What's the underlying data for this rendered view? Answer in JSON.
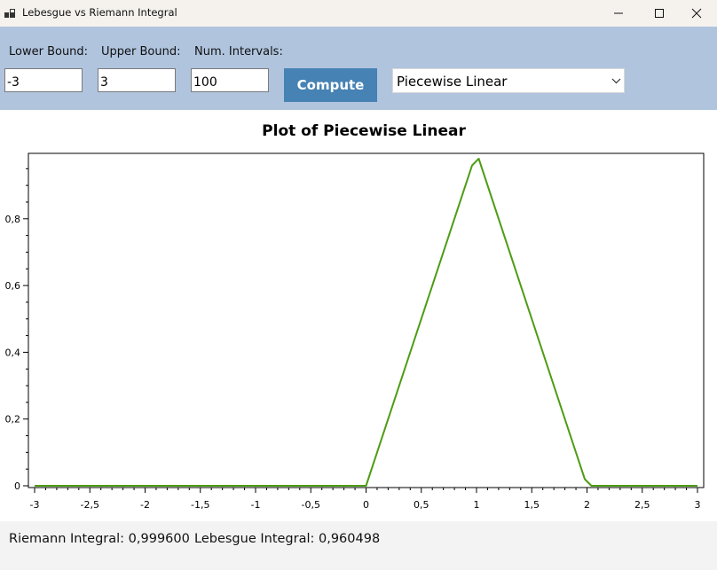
{
  "window": {
    "title": "Lebesgue vs Riemann Integral",
    "minimize_icon": "minimize-icon",
    "maximize_icon": "maximize-icon",
    "close_icon": "close-icon"
  },
  "toolbar": {
    "lower_label": "Lower Bound:",
    "lower_value": "-3",
    "upper_label": "Upper Bound:",
    "upper_value": "3",
    "intervals_label": "Num. Intervals:",
    "intervals_value": "100",
    "compute_label": "Compute",
    "function_select": "Piecewise Linear",
    "compute_color": "#4682b4",
    "background_color": "#b0c4de"
  },
  "chart_data": {
    "type": "line",
    "title": "Plot of Piecewise Linear",
    "xlim": [
      -3,
      3
    ],
    "ylim": [
      0,
      1
    ],
    "x_tick_labels": [
      "-3",
      "-2,5",
      "-2",
      "-1,5",
      "-1",
      "-0,5",
      "0",
      "0,5",
      "1",
      "1,5",
      "2",
      "2,5",
      "3"
    ],
    "y_tick_labels": [
      "0",
      "0,2",
      "0,4",
      "0,6",
      "0,8"
    ],
    "series": [
      {
        "color": "#4d9c14",
        "x": [
          -3,
          0,
          0.96,
          1.02,
          1.98,
          2.04,
          3
        ],
        "y": [
          0,
          0,
          0.96,
          0.98,
          0.02,
          0,
          0
        ]
      }
    ]
  },
  "status": {
    "riemann": "Riemann Integral: 0,999600",
    "lebesgue": "Lebesgue Integral: 0,960498"
  }
}
